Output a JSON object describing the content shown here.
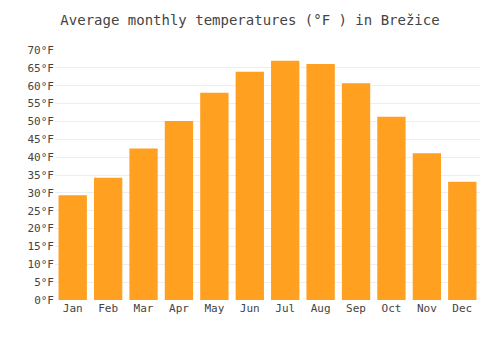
{
  "chart_data": {
    "type": "bar",
    "title": "Average monthly temperatures (°F ) in Brežice",
    "categories": [
      "Jan",
      "Feb",
      "Mar",
      "Apr",
      "May",
      "Jun",
      "Jul",
      "Aug",
      "Sep",
      "Oct",
      "Nov",
      "Dec"
    ],
    "values": [
      29.3,
      34.2,
      42.4,
      50.1,
      58.0,
      63.9,
      67.0,
      66.1,
      60.7,
      51.3,
      41.1,
      33.1
    ],
    "color": "#FFA020",
    "ylim": [
      0,
      70
    ],
    "yticks": [
      {
        "value": 0,
        "label": "0°F"
      },
      {
        "value": 5,
        "label": "5°F"
      },
      {
        "value": 10,
        "label": "10°F"
      },
      {
        "value": 15,
        "label": "15°F"
      },
      {
        "value": 20,
        "label": "20°F"
      },
      {
        "value": 25,
        "label": "25°F"
      },
      {
        "value": 30,
        "label": "30°F"
      },
      {
        "value": 35,
        "label": "35°F"
      },
      {
        "value": 40,
        "label": "40°F"
      },
      {
        "value": 45,
        "label": "45°F"
      },
      {
        "value": 50,
        "label": "50°F"
      },
      {
        "value": 55,
        "label": "55°F"
      },
      {
        "value": 60,
        "label": "60°F"
      },
      {
        "value": 65,
        "label": "65°F"
      },
      {
        "value": 70,
        "label": "70°F"
      }
    ],
    "grid": true
  }
}
